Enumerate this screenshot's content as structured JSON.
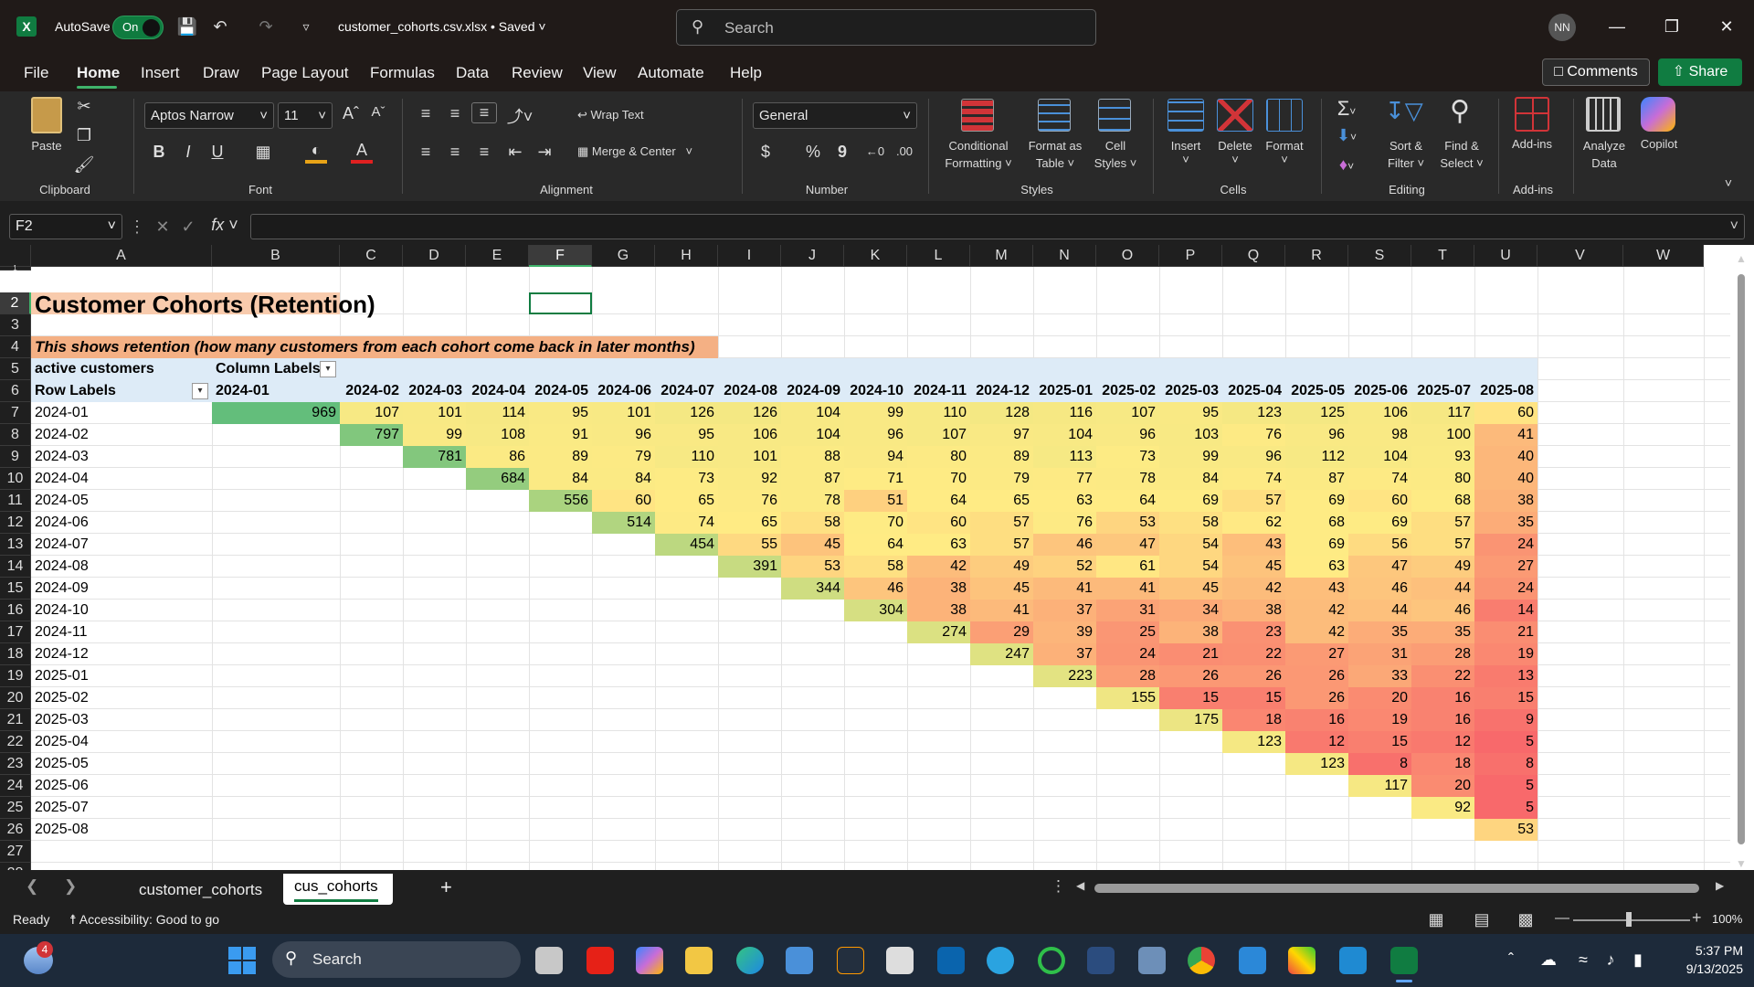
{
  "titlebar": {
    "app_icon": "X",
    "autosave_label": "AutoSave",
    "autosave_state": "On",
    "filename": "customer_cohorts.csv.xlsx",
    "saved_state": "• Saved",
    "search_placeholder": "Search",
    "user_initials": "NN"
  },
  "menu": [
    "File",
    "Home",
    "Insert",
    "Draw",
    "Page Layout",
    "Formulas",
    "Data",
    "Review",
    "View",
    "Automate",
    "Help"
  ],
  "menu_right": {
    "comments": "Comments",
    "share": "Share"
  },
  "ribbon": {
    "clipboard": {
      "paste": "Paste",
      "group": "Clipboard"
    },
    "font": {
      "name": "Aptos Narrow",
      "size": "11",
      "bold": "B",
      "italic": "I",
      "underline": "U",
      "group": "Font"
    },
    "alignment": {
      "wrap": "Wrap Text",
      "merge": "Merge & Center",
      "group": "Alignment"
    },
    "number": {
      "format": "General",
      "currency": "$",
      "percent": "%",
      "comma": "9",
      "group": "Number"
    },
    "styles": {
      "conditional": "Conditional",
      "conditional2": "Formatting",
      "format_table": "Format as",
      "format_table2": "Table",
      "cell_styles": "Cell",
      "cell_styles2": "Styles",
      "group": "Styles"
    },
    "cells": {
      "insert": "Insert",
      "delete": "Delete",
      "format": "Format",
      "group": "Cells"
    },
    "editing": {
      "sort": "Sort &",
      "sort2": "Filter",
      "find": "Find &",
      "find2": "Select",
      "group": "Editing"
    },
    "addins": {
      "addins": "Add-ins",
      "group": "Add-ins"
    },
    "analyze": {
      "label": "Analyze",
      "label2": "Data"
    },
    "copilot": {
      "label": "Copilot"
    }
  },
  "formula_bar": {
    "name_box": "F2",
    "fx": "fx",
    "content": ""
  },
  "columns": [
    "A",
    "B",
    "C",
    "D",
    "E",
    "F",
    "G",
    "H",
    "I",
    "J",
    "K",
    "L",
    "M",
    "N",
    "O",
    "P",
    "Q",
    "R",
    "S",
    "T",
    "U",
    "V",
    "W"
  ],
  "rows": [
    "1",
    "2",
    "3",
    "4",
    "5",
    "6",
    "7",
    "8",
    "9",
    "10",
    "11",
    "12",
    "13",
    "14",
    "15",
    "16",
    "17",
    "18",
    "19",
    "20",
    "21",
    "22",
    "23",
    "24",
    "25",
    "26",
    "27",
    "28"
  ],
  "sheet": {
    "title": "Customer Cohorts (Retention)",
    "note": "This shows retention (how many customers from each cohort come back in later months)",
    "values_label": "active customers",
    "column_labels": "Column Labels",
    "row_labels": "Row Labels",
    "months": [
      "2024-01",
      "2024-02",
      "2024-03",
      "2024-04",
      "2024-05",
      "2024-06",
      "2024-07",
      "2024-08",
      "2024-09",
      "2024-10",
      "2024-11",
      "2024-12",
      "2025-01",
      "2025-02",
      "2025-03",
      "2025-04",
      "2025-05",
      "2025-06",
      "2025-07",
      "2025-08"
    ],
    "cohorts": [
      "2024-01",
      "2024-02",
      "2024-03",
      "2024-04",
      "2024-05",
      "2024-06",
      "2024-07",
      "2024-08",
      "2024-09",
      "2024-10",
      "2024-11",
      "2024-12",
      "2025-01",
      "2025-02",
      "2025-03",
      "2025-04",
      "2025-05",
      "2025-06",
      "2025-07",
      "2025-08"
    ],
    "matrix": [
      [
        969,
        107,
        101,
        114,
        95,
        101,
        126,
        126,
        104,
        99,
        110,
        128,
        116,
        107,
        95,
        123,
        125,
        106,
        117,
        60
      ],
      [
        null,
        797,
        99,
        108,
        91,
        96,
        95,
        106,
        104,
        96,
        107,
        97,
        104,
        96,
        103,
        76,
        96,
        98,
        100,
        41
      ],
      [
        null,
        null,
        781,
        86,
        89,
        79,
        110,
        101,
        88,
        94,
        80,
        89,
        113,
        73,
        99,
        96,
        112,
        104,
        93,
        40
      ],
      [
        null,
        null,
        null,
        684,
        84,
        84,
        73,
        92,
        87,
        71,
        70,
        79,
        77,
        78,
        84,
        74,
        87,
        74,
        80,
        40
      ],
      [
        null,
        null,
        null,
        null,
        556,
        60,
        65,
        76,
        78,
        51,
        64,
        65,
        63,
        64,
        69,
        57,
        69,
        60,
        68,
        38
      ],
      [
        null,
        null,
        null,
        null,
        null,
        514,
        74,
        65,
        58,
        70,
        60,
        57,
        76,
        53,
        58,
        62,
        68,
        69,
        57,
        35
      ],
      [
        null,
        null,
        null,
        null,
        null,
        null,
        454,
        55,
        45,
        64,
        63,
        57,
        46,
        47,
        54,
        43,
        69,
        56,
        57,
        24
      ],
      [
        null,
        null,
        null,
        null,
        null,
        null,
        null,
        391,
        53,
        58,
        42,
        49,
        52,
        61,
        54,
        45,
        63,
        47,
        49,
        27
      ],
      [
        null,
        null,
        null,
        null,
        null,
        null,
        null,
        null,
        344,
        46,
        38,
        45,
        41,
        41,
        45,
        42,
        43,
        46,
        44,
        24
      ],
      [
        null,
        null,
        null,
        null,
        null,
        null,
        null,
        null,
        null,
        304,
        38,
        41,
        37,
        31,
        34,
        38,
        42,
        44,
        46,
        14
      ],
      [
        null,
        null,
        null,
        null,
        null,
        null,
        null,
        null,
        null,
        null,
        274,
        29,
        39,
        25,
        38,
        23,
        42,
        35,
        35,
        21
      ],
      [
        null,
        null,
        null,
        null,
        null,
        null,
        null,
        null,
        null,
        null,
        null,
        247,
        37,
        24,
        21,
        22,
        27,
        31,
        28,
        19
      ],
      [
        null,
        null,
        null,
        null,
        null,
        null,
        null,
        null,
        null,
        null,
        null,
        null,
        223,
        28,
        26,
        26,
        26,
        33,
        22,
        13
      ],
      [
        null,
        null,
        null,
        null,
        null,
        null,
        null,
        null,
        null,
        null,
        null,
        null,
        null,
        155,
        15,
        15,
        26,
        20,
        16,
        15
      ],
      [
        null,
        null,
        null,
        null,
        null,
        null,
        null,
        null,
        null,
        null,
        null,
        null,
        null,
        null,
        175,
        18,
        16,
        19,
        16,
        9
      ],
      [
        null,
        null,
        null,
        null,
        null,
        null,
        null,
        null,
        null,
        null,
        null,
        null,
        null,
        null,
        null,
        123,
        12,
        15,
        12,
        5
      ],
      [
        null,
        null,
        null,
        null,
        null,
        null,
        null,
        null,
        null,
        null,
        null,
        null,
        null,
        null,
        null,
        null,
        123,
        8,
        18,
        8
      ],
      [
        null,
        null,
        null,
        null,
        null,
        null,
        null,
        null,
        null,
        null,
        null,
        null,
        null,
        null,
        null,
        null,
        null,
        117,
        20,
        5
      ],
      [
        null,
        null,
        null,
        null,
        null,
        null,
        null,
        null,
        null,
        null,
        null,
        null,
        null,
        null,
        null,
        null,
        null,
        null,
        92,
        5
      ],
      [
        null,
        null,
        null,
        null,
        null,
        null,
        null,
        null,
        null,
        null,
        null,
        null,
        null,
        null,
        null,
        null,
        null,
        null,
        null,
        53
      ]
    ]
  },
  "colors": {
    "accent": "#107c41",
    "title_fill": "#f8cbad",
    "note_fill": "#f4b084",
    "header_fill": "#ddebf7",
    "heat_low": "#f8696b",
    "heat_mid": "#ffeb84",
    "heat_high": "#63be7b"
  },
  "tabs": {
    "sheet1": "customer_cohorts",
    "sheet2": "cus_cohorts",
    "add": "+"
  },
  "status": {
    "ready": "Ready",
    "accessibility": "Accessibility: Good to go",
    "zoom": "100%"
  },
  "taskbar": {
    "search": "Search",
    "time": "5:37 PM",
    "date": "9/13/2025",
    "badge": "4"
  }
}
